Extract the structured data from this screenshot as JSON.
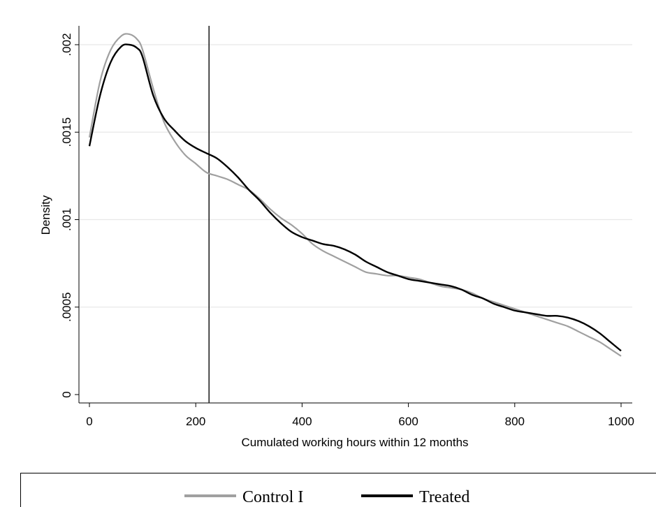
{
  "chart_data": {
    "type": "line",
    "title": "",
    "xlabel": "Cumulated working hours within 12 months",
    "ylabel": "Density",
    "xlim": [
      0,
      1000
    ],
    "ylim": [
      0,
      0.002
    ],
    "x_ticks": [
      0,
      200,
      400,
      600,
      800,
      1000
    ],
    "x_tick_labels": [
      "0",
      "200",
      "400",
      "600",
      "800",
      "1000"
    ],
    "y_ticks": [
      0,
      0.0005,
      0.001,
      0.0015,
      0.002
    ],
    "y_tick_labels": [
      "0",
      ".0005",
      ".001",
      ".0015",
      ".002"
    ],
    "grid": true,
    "legend_position": "bottom",
    "vertical_reference_line_x": 225,
    "series": [
      {
        "name": "Control I",
        "color": "#a0a0a0",
        "x": [
          0,
          20,
          40,
          60,
          75,
          90,
          100,
          120,
          140,
          160,
          180,
          200,
          220,
          240,
          260,
          280,
          300,
          320,
          340,
          360,
          380,
          400,
          420,
          440,
          460,
          480,
          500,
          520,
          540,
          560,
          580,
          600,
          620,
          640,
          660,
          680,
          700,
          720,
          740,
          760,
          780,
          800,
          820,
          840,
          860,
          880,
          900,
          920,
          940,
          960,
          980,
          1000
        ],
        "values": [
          0.00147,
          0.00179,
          0.00197,
          0.00205,
          0.00206,
          0.00203,
          0.00197,
          0.00175,
          0.00156,
          0.00145,
          0.00137,
          0.00132,
          0.00127,
          0.00125,
          0.00123,
          0.0012,
          0.00117,
          0.00112,
          0.00106,
          0.00101,
          0.00097,
          0.00092,
          0.00086,
          0.00082,
          0.00079,
          0.00076,
          0.00073,
          0.0007,
          0.00069,
          0.00068,
          0.00068,
          0.00067,
          0.00066,
          0.00064,
          0.00062,
          0.00061,
          0.0006,
          0.00058,
          0.00055,
          0.00053,
          0.00051,
          0.00049,
          0.00047,
          0.00045,
          0.00043,
          0.00041,
          0.00039,
          0.00036,
          0.00033,
          0.0003,
          0.00026,
          0.00022
        ]
      },
      {
        "name": "Treated",
        "color": "#000000",
        "x": [
          0,
          20,
          40,
          60,
          75,
          90,
          100,
          120,
          140,
          160,
          180,
          200,
          220,
          240,
          260,
          280,
          300,
          320,
          340,
          360,
          380,
          400,
          420,
          440,
          460,
          480,
          500,
          520,
          540,
          560,
          580,
          600,
          620,
          640,
          660,
          680,
          700,
          720,
          740,
          760,
          780,
          800,
          820,
          840,
          860,
          880,
          900,
          920,
          940,
          960,
          980,
          1000
        ],
        "values": [
          0.00142,
          0.00171,
          0.0019,
          0.00199,
          0.002,
          0.00198,
          0.00193,
          0.00171,
          0.00158,
          0.00151,
          0.00145,
          0.00141,
          0.00138,
          0.00135,
          0.0013,
          0.00124,
          0.00117,
          0.00111,
          0.00104,
          0.00098,
          0.00093,
          0.0009,
          0.00088,
          0.00086,
          0.00085,
          0.00083,
          0.0008,
          0.00076,
          0.00073,
          0.0007,
          0.00068,
          0.00066,
          0.00065,
          0.00064,
          0.00063,
          0.00062,
          0.0006,
          0.00057,
          0.00055,
          0.00052,
          0.0005,
          0.00048,
          0.00047,
          0.00046,
          0.00045,
          0.00045,
          0.00044,
          0.00042,
          0.00039,
          0.00035,
          0.0003,
          0.00025
        ]
      }
    ]
  }
}
